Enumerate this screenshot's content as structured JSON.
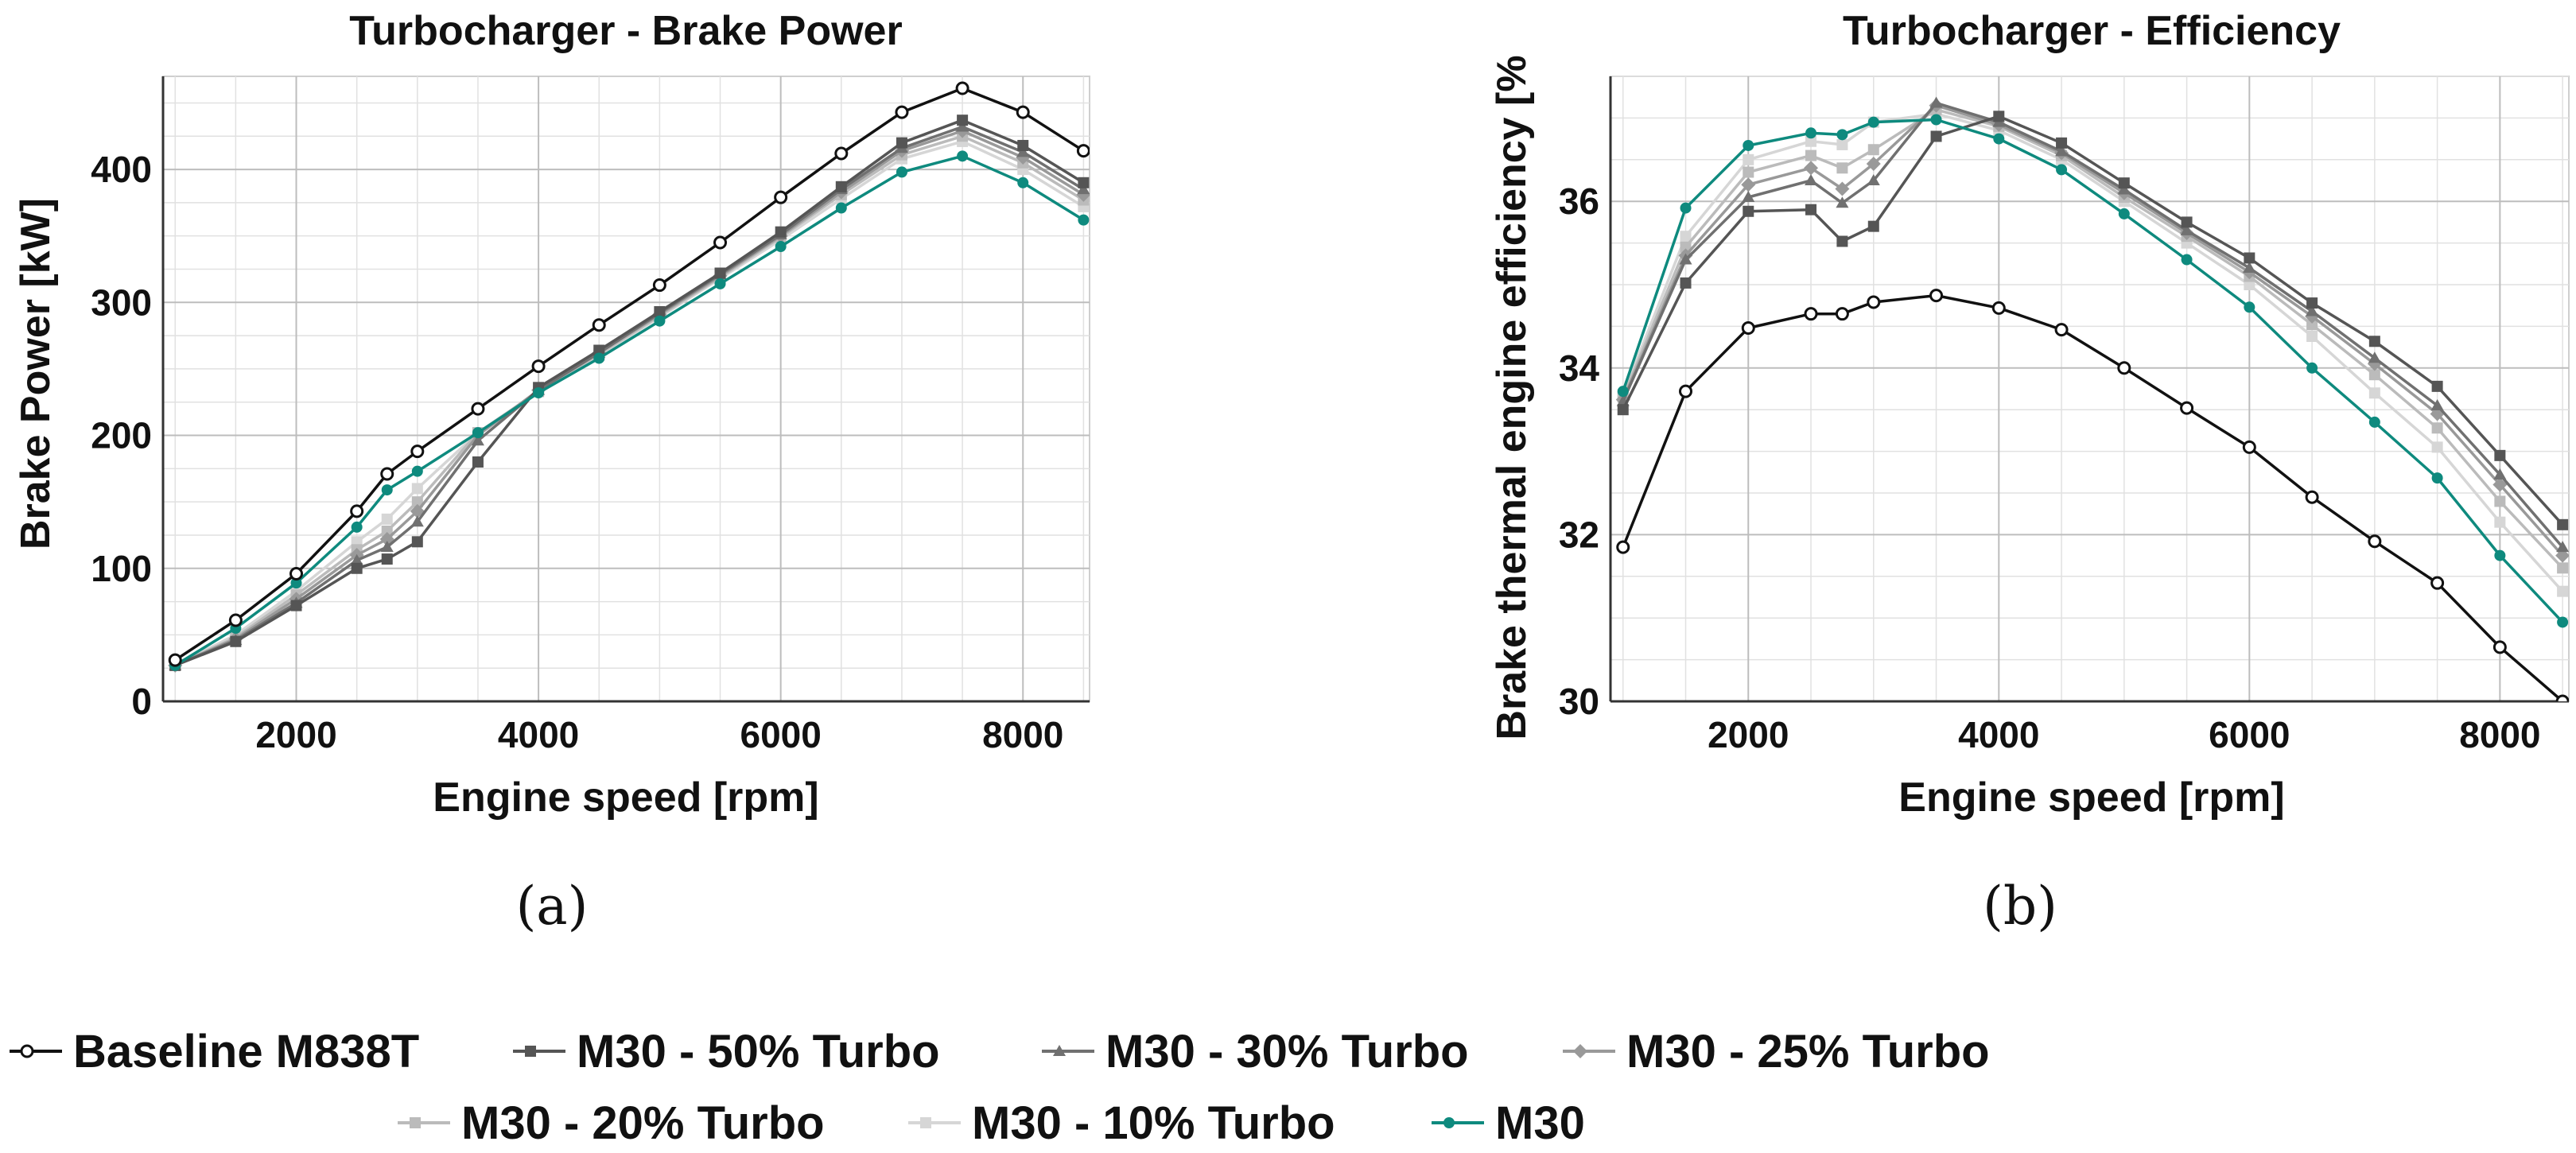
{
  "chart_data": [
    {
      "type": "line",
      "panel": "(a)",
      "title": "Turbocharger - Brake Power",
      "xlabel": "Engine speed [rpm]",
      "ylabel": "Brake Power [kW]",
      "xlim": [
        900,
        8550
      ],
      "ylim": [
        0,
        470
      ],
      "xticks": [
        2000,
        4000,
        6000,
        8000
      ],
      "yticks": [
        0,
        100,
        200,
        300,
        400
      ],
      "grid": true,
      "x": [
        1000,
        1500,
        2000,
        2500,
        2750,
        3000,
        3500,
        4000,
        4500,
        5000,
        5500,
        6000,
        6500,
        7000,
        7500,
        8000,
        8500
      ],
      "series": [
        {
          "name": "Baseline M838T",
          "values": [
            31,
            61,
            96,
            143,
            171,
            188,
            220,
            252,
            283,
            313,
            345,
            379,
            412,
            443,
            461,
            443,
            414
          ]
        },
        {
          "name": "M30 - 50% Turbo",
          "values": [
            27,
            45,
            72,
            100,
            107,
            120,
            180,
            236,
            264,
            293,
            322,
            353,
            387,
            420,
            437,
            418,
            390
          ]
        },
        {
          "name": "M30 - 30% Turbo",
          "values": [
            27,
            46,
            74,
            106,
            116,
            135,
            196,
            234,
            262,
            292,
            321,
            351,
            385,
            416,
            432,
            413,
            385
          ]
        },
        {
          "name": "M30 - 25% Turbo",
          "values": [
            27,
            47,
            77,
            110,
            122,
            143,
            200,
            234,
            262,
            291,
            320,
            350,
            383,
            414,
            429,
            409,
            381
          ]
        },
        {
          "name": "M30 - 20% Turbo",
          "values": [
            27,
            48,
            80,
            114,
            128,
            150,
            202,
            233,
            261,
            290,
            319,
            349,
            381,
            411,
            425,
            405,
            377
          ]
        },
        {
          "name": "M30 - 10% Turbo",
          "values": [
            27,
            50,
            83,
            120,
            137,
            160,
            202,
            233,
            260,
            289,
            318,
            347,
            378,
            408,
            421,
            400,
            372
          ]
        },
        {
          "name": "M30",
          "values": [
            27,
            55,
            89,
            131,
            159,
            173,
            202,
            232,
            258,
            286,
            314,
            342,
            371,
            398,
            410,
            390,
            362
          ]
        }
      ]
    },
    {
      "type": "line",
      "panel": "(b)",
      "title": "Turbocharger - Efficiency",
      "xlabel": "Engine speed [rpm]",
      "ylabel": "Brake thermal engine efficiency [%",
      "xlim": [
        900,
        8550
      ],
      "ylim": [
        30,
        37.5
      ],
      "xticks": [
        2000,
        4000,
        6000,
        8000
      ],
      "yticks": [
        30,
        32,
        34,
        36
      ],
      "grid": true,
      "x": [
        1000,
        1500,
        2000,
        2500,
        2750,
        3000,
        3500,
        4000,
        4500,
        5000,
        5500,
        6000,
        6500,
        7000,
        7500,
        8000,
        8500
      ],
      "series": [
        {
          "name": "Baseline M838T",
          "values": [
            31.85,
            33.72,
            34.48,
            34.65,
            34.65,
            34.79,
            34.87,
            34.72,
            34.46,
            34.0,
            33.52,
            33.05,
            32.45,
            31.92,
            31.42,
            30.65,
            30.0
          ]
        },
        {
          "name": "M30 - 50% Turbo",
          "values": [
            33.5,
            35.02,
            35.88,
            35.9,
            35.52,
            35.7,
            36.78,
            37.02,
            36.7,
            36.22,
            35.75,
            35.32,
            34.78,
            34.32,
            33.78,
            32.95,
            32.12
          ]
        },
        {
          "name": "M30 - 30% Turbo",
          "values": [
            33.6,
            35.3,
            36.05,
            36.25,
            35.98,
            36.25,
            37.18,
            36.95,
            36.6,
            36.14,
            35.65,
            35.2,
            34.68,
            34.12,
            33.55,
            32.72,
            31.85
          ]
        },
        {
          "name": "M30 - 25% Turbo",
          "values": [
            33.62,
            35.35,
            36.2,
            36.4,
            36.15,
            36.45,
            37.15,
            36.92,
            36.58,
            36.1,
            35.62,
            35.15,
            34.62,
            34.05,
            33.45,
            32.6,
            31.75
          ]
        },
        {
          "name": "M30 - 20% Turbo",
          "values": [
            33.65,
            35.45,
            36.35,
            36.55,
            36.4,
            36.62,
            37.1,
            36.9,
            36.55,
            36.05,
            35.58,
            35.1,
            34.52,
            33.92,
            33.28,
            32.4,
            31.6
          ]
        },
        {
          "name": "M30 - 10% Turbo",
          "values": [
            33.68,
            35.58,
            36.5,
            36.72,
            36.68,
            36.95,
            37.05,
            36.85,
            36.5,
            36.0,
            35.5,
            35.0,
            34.38,
            33.7,
            33.05,
            32.15,
            31.32
          ]
        },
        {
          "name": "M30",
          "values": [
            33.72,
            35.92,
            36.67,
            36.82,
            36.8,
            36.95,
            36.98,
            36.75,
            36.38,
            35.85,
            35.3,
            34.73,
            34.0,
            33.35,
            32.68,
            31.75,
            30.95
          ]
        }
      ]
    }
  ],
  "series_styles": [
    {
      "color": "#111111",
      "marker": "open-circle"
    },
    {
      "color": "#555555",
      "marker": "square"
    },
    {
      "color": "#707070",
      "marker": "triangle"
    },
    {
      "color": "#999999",
      "marker": "diamond"
    },
    {
      "color": "#bbbbbb",
      "marker": "square"
    },
    {
      "color": "#d6d6d6",
      "marker": "square"
    },
    {
      "color": "#0e8a7e",
      "marker": "dot"
    }
  ],
  "legend": {
    "placement": "bottom",
    "items": [
      "Baseline M838T",
      "M30 - 50% Turbo",
      "M30 - 30% Turbo",
      "M30 - 25% Turbo",
      "M30 - 20% Turbo",
      "M30 - 10% Turbo",
      "M30"
    ]
  }
}
